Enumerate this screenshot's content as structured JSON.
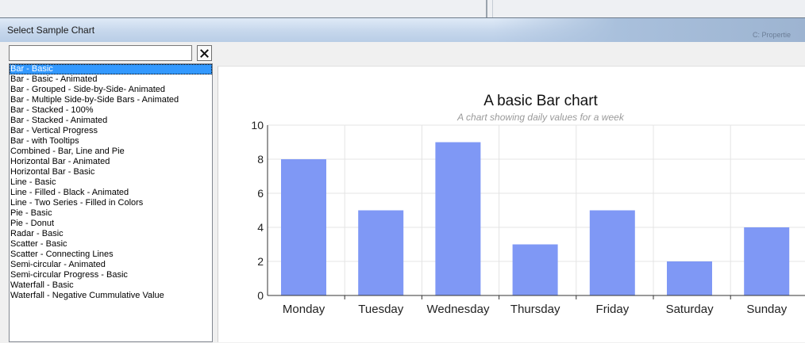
{
  "window": {
    "title": "Select Sample Chart",
    "faint_background_text": "C: Propertie"
  },
  "search": {
    "value": "",
    "placeholder": ""
  },
  "list": {
    "selected_index": 0,
    "items": [
      "Bar - Basic",
      "Bar - Basic - Animated",
      "Bar - Grouped - Side-by-Side- Animated",
      "Bar - Multiple Side-by-Side Bars - Animated",
      "Bar - Stacked - 100%",
      "Bar - Stacked - Animated",
      "Bar - Vertical Progress",
      "Bar - with Tooltips",
      "Combined - Bar, Line and Pie",
      "Horizontal Bar - Animated",
      "Horizontal Bar - Basic",
      "Line - Basic",
      "Line - Filled - Black - Animated",
      "Line - Two Series - Filled in Colors",
      "Pie - Basic",
      "Pie - Donut",
      "Radar - Basic",
      "Scatter - Basic",
      "Scatter - Connecting Lines",
      "Semi-circular - Animated",
      "Semi-circular Progress - Basic",
      "Waterfall - Basic",
      "Waterfall - Negative Cummulative Value"
    ]
  },
  "chart_data": {
    "type": "bar",
    "title": "A basic Bar chart",
    "subtitle": "A chart showing daily values for a week",
    "categories": [
      "Monday",
      "Tuesday",
      "Wednesday",
      "Thursday",
      "Friday",
      "Saturday",
      "Sunday"
    ],
    "values": [
      8,
      5,
      9,
      3,
      5,
      2,
      4
    ],
    "ylim": [
      0,
      10
    ],
    "yticks": [
      0,
      2,
      4,
      6,
      8,
      10
    ],
    "grid": true,
    "bar_color": "#7f98f5",
    "xlabel": "",
    "ylabel": ""
  }
}
